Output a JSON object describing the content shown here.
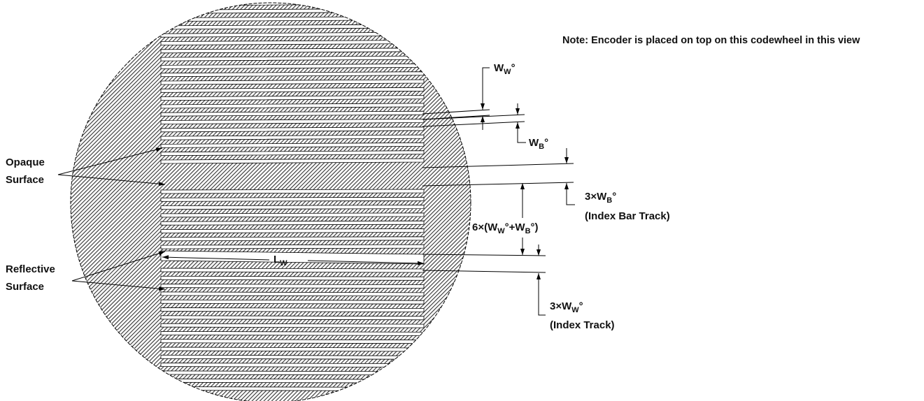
{
  "note": "Note: Encoder is placed on top on this codewheel in this view",
  "labels": {
    "opaque_line1": "Opaque",
    "opaque_line2": "Surface",
    "reflective_line1": "Reflective",
    "reflective_line2": "Surface",
    "ww_main": "W",
    "ww_sub": "W",
    "ww_deg": "°",
    "wb_main": "W",
    "wb_sub": "B",
    "wb_deg": "°",
    "index_bar_prefix": "3×W",
    "index_bar_sub": "B",
    "index_bar_deg": "°",
    "index_bar_track": "(Index Bar Track)",
    "period_prefix": "6×(W",
    "period_sub1": "W",
    "period_mid": "°+W",
    "period_sub2": "B",
    "period_suffix": "°)",
    "lw_main": "L",
    "lw_sub": "W",
    "index_prefix": "3×W",
    "index_sub": "W",
    "index_deg": "°",
    "index_track": "(Index Track)"
  },
  "colors": {
    "hatch": "#333333",
    "stroke": "#000000",
    "background": "#ffffff"
  }
}
